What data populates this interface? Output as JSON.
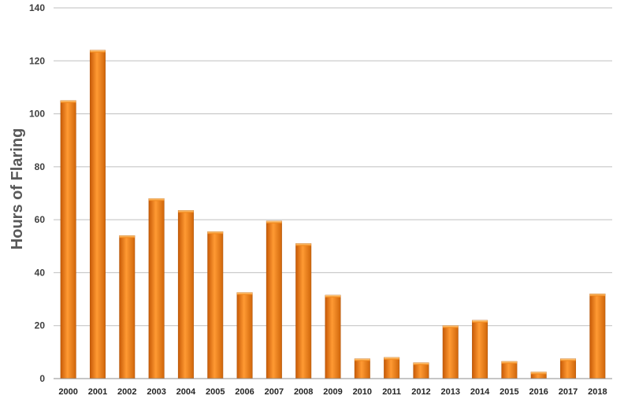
{
  "chart_data": {
    "type": "bar",
    "title": "",
    "xlabel": "",
    "ylabel": "Hours of Flaring",
    "categories": [
      "2000",
      "2001",
      "2002",
      "2003",
      "2004",
      "2005",
      "2006",
      "2007",
      "2008",
      "2009",
      "2010",
      "2011",
      "2012",
      "2013",
      "2014",
      "2015",
      "2016",
      "2017",
      "2018"
    ],
    "values": [
      105,
      124,
      54,
      68,
      63.5,
      55.5,
      32.5,
      59.5,
      51,
      31.5,
      7.5,
      8,
      6,
      20,
      22,
      6.5,
      2.5,
      7.5,
      32
    ],
    "ylim": [
      0,
      140
    ],
    "yticks": [
      0,
      20,
      40,
      60,
      80,
      100,
      120,
      140
    ],
    "grid": true,
    "legend": "none",
    "colors": {
      "bar_light": "#ffb347",
      "bar_mid": "#f07c12",
      "bar_dark": "#b85208",
      "grid": "#bfbfbf"
    }
  }
}
